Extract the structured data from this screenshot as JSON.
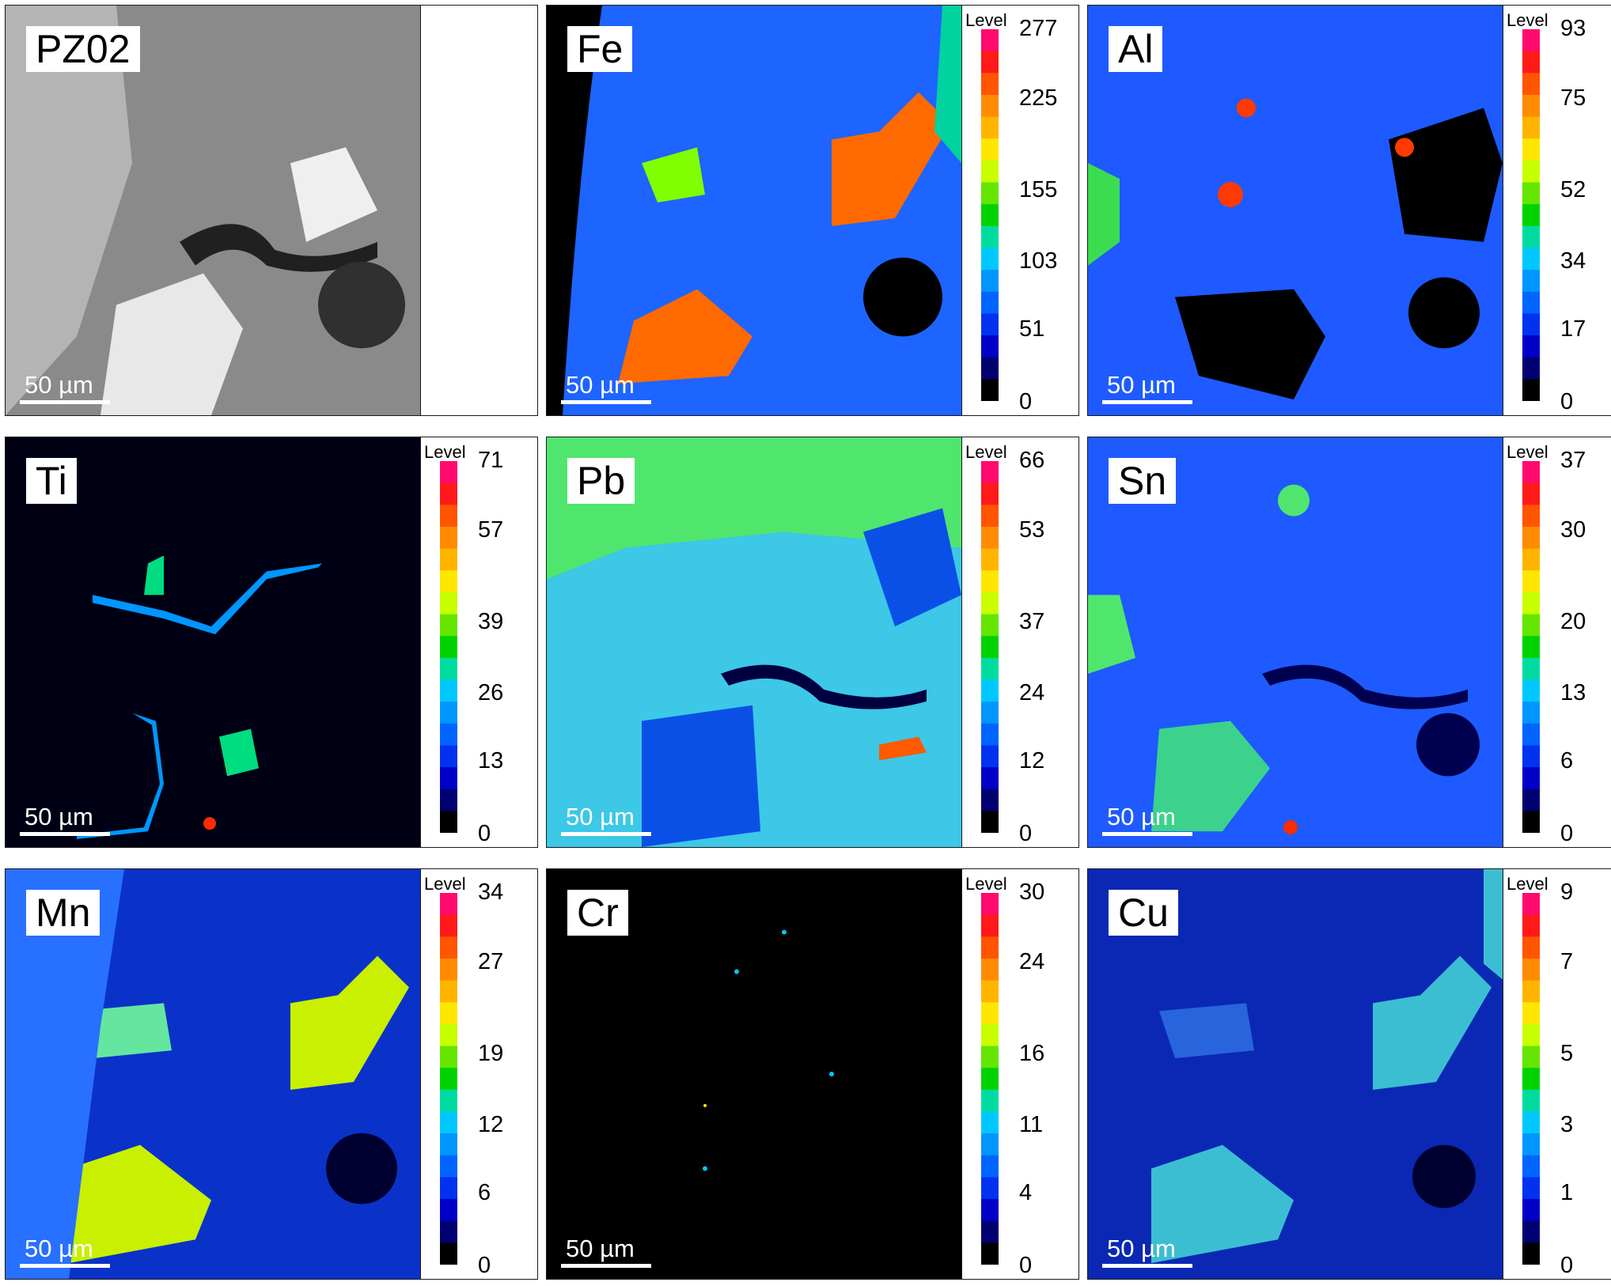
{
  "scale_label": "50 µm",
  "legend_title": "Level",
  "colorbar_colors": [
    "#ff0a6e",
    "#ff1a1a",
    "#ff5500",
    "#ff8c00",
    "#ffb400",
    "#ffe600",
    "#c8ff00",
    "#64e600",
    "#00d200",
    "#00dca0",
    "#00c8ff",
    "#0096ff",
    "#0064ff",
    "#0032f0",
    "#0000c8",
    "#000070",
    "#000000"
  ],
  "panels": [
    {
      "label": "PZ02",
      "type": "bse",
      "bg": "#8a8a8a",
      "ticks": []
    },
    {
      "label": "Fe",
      "type": "map",
      "bg": "#1e64ff",
      "ticks": [
        "277",
        "225",
        "155",
        "103",
        "51",
        "0"
      ]
    },
    {
      "label": "Al",
      "type": "map",
      "bg": "#1e5aff",
      "ticks": [
        "93",
        "75",
        "52",
        "34",
        "17",
        "0"
      ]
    },
    {
      "label": "Ti",
      "type": "map",
      "bg": "#000014",
      "ticks": [
        "71",
        "57",
        "39",
        "26",
        "13",
        "0"
      ]
    },
    {
      "label": "Pb",
      "type": "map",
      "bg": "#3cc8e6",
      "ticks": [
        "66",
        "53",
        "37",
        "24",
        "12",
        "0"
      ]
    },
    {
      "label": "Sn",
      "type": "map",
      "bg": "#1e5aff",
      "ticks": [
        "37",
        "30",
        "20",
        "13",
        "6",
        "0"
      ]
    },
    {
      "label": "Mn",
      "type": "map",
      "bg": "#0a32c8",
      "ticks": [
        "34",
        "27",
        "19",
        "12",
        "6",
        "0"
      ]
    },
    {
      "label": "Cr",
      "type": "map",
      "bg": "#000000",
      "ticks": [
        "30",
        "24",
        "16",
        "11",
        "4",
        "0"
      ]
    },
    {
      "label": "Cu",
      "type": "map",
      "bg": "#0a28b4",
      "ticks": [
        "9",
        "7",
        "5",
        "3",
        "1",
        "0"
      ]
    }
  ]
}
